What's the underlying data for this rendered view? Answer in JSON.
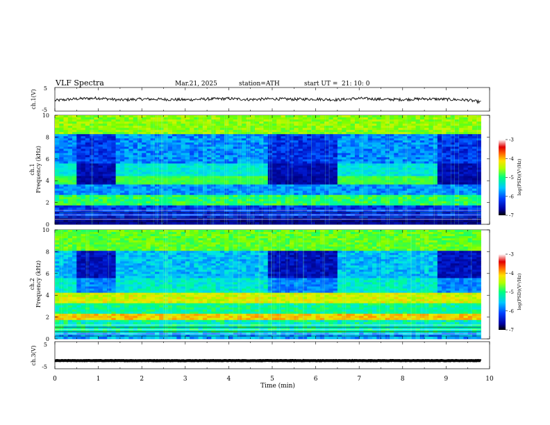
{
  "header": {
    "title": "VLF  Spectra",
    "date": "Mar.21, 2025",
    "station": "station=ATH",
    "start_label": "start  UT  =",
    "start_time": "21: 10: 0"
  },
  "chart_data": [
    {
      "type": "line",
      "panel": "ch1-voltage",
      "ylabel": "ch.1(V)",
      "ylim": [
        -5,
        5
      ],
      "yticks": [
        "5",
        "-5"
      ],
      "xlim": [
        0,
        10
      ],
      "series": [
        {
          "color": "#111111",
          "x": [
            0,
            0.5,
            1,
            1.5,
            2,
            2.5,
            3,
            3.5,
            4,
            4.5,
            5,
            5.5,
            6,
            6.5,
            7,
            7.5,
            8,
            8.5,
            9,
            9.5,
            9.8
          ],
          "values": [
            -0.5,
            0.2,
            0.5,
            -0.3,
            0.1,
            0.0,
            -0.2,
            0.1,
            0.3,
            -0.1,
            0.2,
            0.0,
            0.1,
            -0.2,
            0.4,
            0.0,
            -0.1,
            0.2,
            0.0,
            -0.3,
            -1.2
          ]
        }
      ]
    },
    {
      "type": "heatmap",
      "panel": "ch1-spectrogram",
      "ylabel": "Frequency (kHz)",
      "channel_label": "ch.1",
      "ylim": [
        0,
        10
      ],
      "yticks": [
        "0",
        "2",
        "4",
        "6",
        "8",
        "10"
      ],
      "xlim": [
        0,
        10
      ],
      "colorbar": {
        "label": "log(PSD)(V²/Hz)",
        "ticks": [
          "-3",
          "-4",
          "-5",
          "-6",
          "-7"
        ],
        "range": [
          -7,
          -3
        ]
      },
      "bursts_min": [
        [
          0.5,
          1.45
        ],
        [
          4.95,
          6.45
        ],
        [
          8.85,
          9.8
        ]
      ]
    },
    {
      "type": "heatmap",
      "panel": "ch2-spectrogram",
      "ylabel": "Frequency (kHz)",
      "channel_label": "ch.2",
      "ylim": [
        0,
        10
      ],
      "yticks": [
        "0",
        "2",
        "4",
        "6",
        "8",
        "10"
      ],
      "xlim": [
        0,
        10
      ],
      "colorbar": {
        "label": "log(PSD)(V²/Hz)",
        "ticks": [
          "-3",
          "-4",
          "-5",
          "-6",
          "-7"
        ],
        "range": [
          -7,
          -3
        ]
      },
      "bursts_min": [
        [
          0.5,
          1.45
        ],
        [
          4.95,
          6.45
        ],
        [
          8.85,
          9.8
        ]
      ]
    },
    {
      "type": "line",
      "panel": "ch3-voltage",
      "ylabel": "ch.3(V)",
      "ylim": [
        -5,
        5
      ],
      "yticks": [
        "5",
        "-5"
      ],
      "xlim": [
        0,
        10
      ],
      "xlabel": "Time  (min)",
      "xticks": [
        "0",
        "1",
        "2",
        "3",
        "4",
        "5",
        "6",
        "7",
        "8",
        "9",
        "10"
      ],
      "series": [
        {
          "color": "#000000",
          "x": [
            0,
            9.8
          ],
          "values": [
            -2.0,
            -2.0
          ]
        }
      ]
    }
  ]
}
